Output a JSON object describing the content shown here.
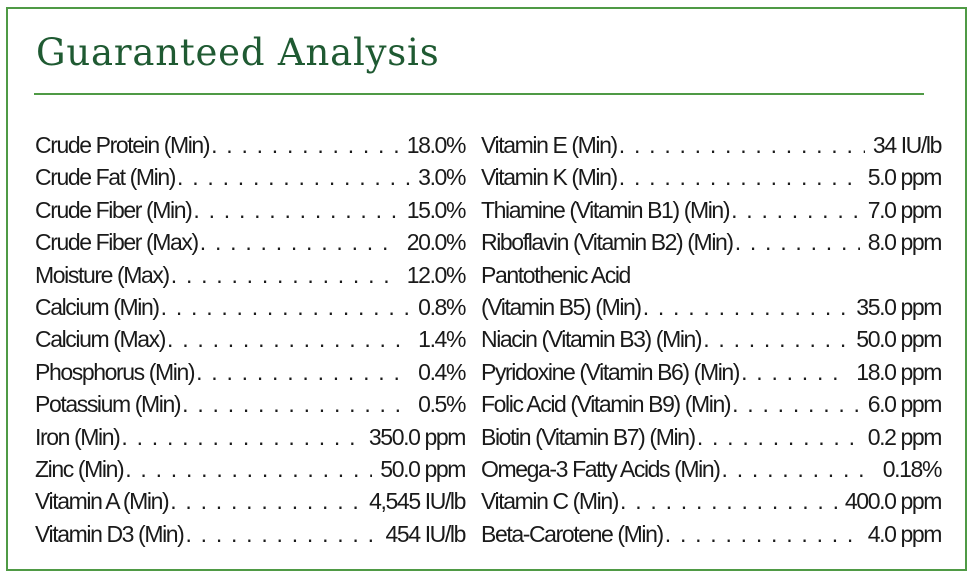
{
  "title": "Guaranteed Analysis",
  "colors": {
    "border": "#4f9a45",
    "title": "#1f5a32",
    "text": "#1a1a1a"
  },
  "left_column": [
    {
      "name": "Crude Protein (Min)",
      "value": "18.0%"
    },
    {
      "name": "Crude Fat (Min)",
      "value": "3.0%"
    },
    {
      "name": "Crude Fiber (Min)",
      "value": "15.0%"
    },
    {
      "name": "Crude Fiber (Max)",
      "value": "20.0%"
    },
    {
      "name": "Moisture (Max)",
      "value": "12.0%"
    },
    {
      "name": "Calcium (Min)",
      "value": "0.8%"
    },
    {
      "name": "Calcium (Max)",
      "value": "1.4%"
    },
    {
      "name": "Phosphorus (Min)",
      "value": "0.4%"
    },
    {
      "name": "Potassium (Min)",
      "value": "0.5%"
    },
    {
      "name": "Iron (Min)",
      "value": "350.0 ppm"
    },
    {
      "name": "Zinc (Min)",
      "value": "50.0 ppm"
    },
    {
      "name": "Vitamin A (Min)",
      "value": "4,545 IU/lb"
    },
    {
      "name": "Vitamin D3 (Min)",
      "value": "454 IU/lb"
    }
  ],
  "right_column": [
    {
      "name": "Vitamin E (Min)",
      "value": "34 IU/lb"
    },
    {
      "name": "Vitamin K (Min)",
      "value": "5.0 ppm"
    },
    {
      "name": "Thiamine (Vitamin B1) (Min)",
      "value": "7.0 ppm"
    },
    {
      "name": "Riboflavin (Vitamin B2) (Min)",
      "value": "8.0 ppm"
    },
    {
      "name": "Pantothenic Acid",
      "value": ""
    },
    {
      "name": "(Vitamin B5) (Min)",
      "value": "35.0 ppm"
    },
    {
      "name": "Niacin (Vitamin B3) (Min)",
      "value": "50.0 ppm"
    },
    {
      "name": "Pyridoxine (Vitamin B6) (Min)",
      "value": "18.0 ppm"
    },
    {
      "name": "Folic Acid (Vitamin B9) (Min)",
      "value": "6.0 ppm"
    },
    {
      "name": "Biotin (Vitamin B7) (Min)",
      "value": "0.2 ppm"
    },
    {
      "name": "Omega-3 Fatty Acids (Min)",
      "value": "0.18%"
    },
    {
      "name": "Vitamin C (Min)",
      "value": "400.0 ppm"
    },
    {
      "name": "Beta-Carotene (Min)",
      "value": "4.0 ppm"
    }
  ]
}
